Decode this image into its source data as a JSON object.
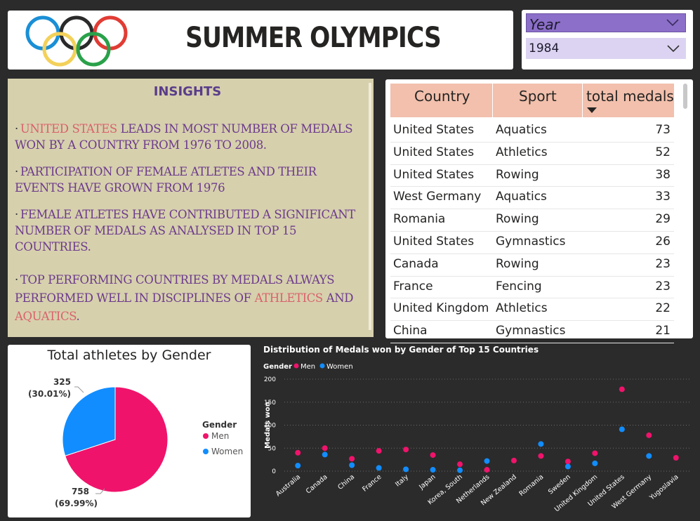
{
  "header": {
    "title": "SUMMER OLYMPICS"
  },
  "slicer": {
    "label": "Year",
    "selected": "1984"
  },
  "insights": {
    "title": "INSIGHTS",
    "bullets": [
      {
        "highlight": "UNITED STATES",
        "text": " LEADS IN MOST NUMBER OF MEDALS WON BY A COUNTRY FROM 1976 TO 2008."
      },
      {
        "text": "PARTICIPATION OF FEMALE ATLETES AND THEIR EVENTS HAVE GROWN FROM 1976"
      },
      {
        "text": "FEMALE ATLETES HAVE CONTRIBUTED A SIGNIFICANT NUMBER OF MEDALS AS ANALYSED IN TOP 15 COUNTRIES."
      },
      {
        "pre": "TOP PERFORMING COUNTRIES BY MEDALS ALWAYS PERFORMED WELL IN DISCIPLINES OF ",
        "hl1": "ATHLETICS",
        "mid": " AND ",
        "hl2": "AQUATICS",
        "end": "."
      }
    ]
  },
  "table": {
    "columns": [
      "Country",
      "Sport",
      "total medals"
    ],
    "rows": [
      [
        "United States",
        "Aquatics",
        "73"
      ],
      [
        "United States",
        "Athletics",
        "52"
      ],
      [
        "United States",
        "Rowing",
        "38"
      ],
      [
        "West Germany",
        "Aquatics",
        "33"
      ],
      [
        "Romania",
        "Rowing",
        "29"
      ],
      [
        "United States",
        "Gymnastics",
        "26"
      ],
      [
        "Canada",
        "Rowing",
        "23"
      ],
      [
        "France",
        "Fencing",
        "23"
      ],
      [
        "United Kingdom",
        "Athletics",
        "22"
      ],
      [
        "China",
        "Gymnastics",
        "21"
      ]
    ]
  },
  "chart_data": [
    {
      "type": "pie",
      "title": "Total athletes by Gender",
      "legend_title": "Gender",
      "legend_position": "right",
      "slices": [
        {
          "name": "Men",
          "value": 758,
          "label": "758",
          "pct": "(69.99%)",
          "color": "#f0136b"
        },
        {
          "name": "Women",
          "value": 325,
          "label": "325",
          "pct": "(30.01%)",
          "color": "#118dff"
        }
      ]
    },
    {
      "type": "scatter",
      "title": "Distribution of Medals won by Gender of Top 15 Countries",
      "legend_title": "Gender",
      "legend_position": "top-left",
      "ylabel": "Medals won",
      "xlabel": "",
      "ylim": [
        0,
        200
      ],
      "yticks": [
        0,
        50,
        100,
        150,
        200
      ],
      "grid": true,
      "categories": [
        "Australia",
        "Canada",
        "China",
        "France",
        "Italy",
        "Japan",
        "Korea, South",
        "Netherlands",
        "New Zealand",
        "Romania",
        "Sweden",
        "United Kingdom",
        "United States",
        "West Germany",
        "Yugoslavia"
      ],
      "series": [
        {
          "name": "Men",
          "color": "#f0136b",
          "values": [
            40,
            50,
            27,
            44,
            47,
            35,
            15,
            3,
            23,
            33,
            21,
            39,
            178,
            78,
            29
          ]
        },
        {
          "name": "Women",
          "color": "#118dff",
          "values": [
            12,
            36,
            13,
            7,
            4,
            3,
            2,
            22,
            null,
            59,
            10,
            17,
            91,
            33,
            null
          ]
        }
      ]
    }
  ]
}
